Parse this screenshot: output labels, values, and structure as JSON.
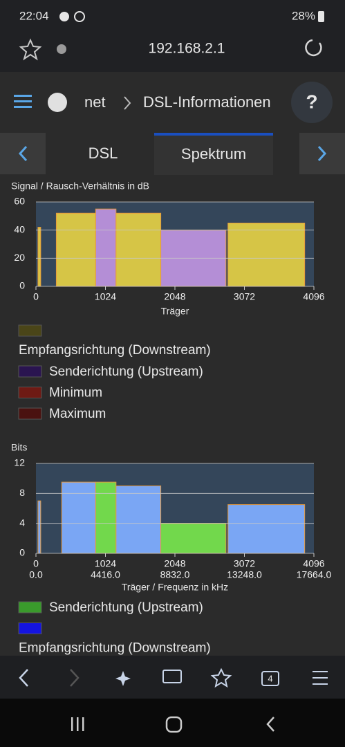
{
  "status_bar": {
    "time": "22:04",
    "battery": "28%"
  },
  "address_bar": {
    "url": "192.168.2.1"
  },
  "breadcrumb": {
    "parent": "net",
    "current": "DSL-Informationen"
  },
  "help": "?",
  "tabs": [
    "DSL",
    "Spektrum"
  ],
  "charts": [
    {
      "type": "bar",
      "title": "Signal / Rausch-Verhältnis in dB",
      "xlabel": "Träger",
      "xlim": [
        0,
        4096
      ],
      "xticks": [
        0,
        1024,
        2048,
        3072,
        4096
      ],
      "ylim": [
        0,
        60
      ],
      "yticks": [
        0,
        20,
        40,
        60
      ],
      "grid": true,
      "series": [
        {
          "name": "Empfangsrichtung (Downstream)",
          "color": "#d6c546",
          "legend_color": "#4a4518"
        },
        {
          "name": "Senderichtung (Upstream)",
          "color": "#b48ed6",
          "legend_color": "#2a1450"
        },
        {
          "name": "Minimum",
          "legend_color": "#6e1a14"
        },
        {
          "name": "Maximum",
          "legend_color": "#4a1210"
        }
      ],
      "segments": [
        {
          "series": 0,
          "x": [
            30,
            70
          ],
          "value": 42
        },
        {
          "series": 0,
          "x": [
            300,
            880
          ],
          "value": 52
        },
        {
          "series": 1,
          "x": [
            880,
            1180
          ],
          "value": 55
        },
        {
          "series": 0,
          "x": [
            1180,
            1840
          ],
          "value": 52
        },
        {
          "series": 1,
          "x": [
            1840,
            2800
          ],
          "value": 40
        },
        {
          "series": 0,
          "x": [
            2830,
            3960
          ],
          "value": 45
        }
      ]
    },
    {
      "type": "bar",
      "title": "Bits",
      "xlabel": "Träger / Frequenz in kHz",
      "xlim": [
        0,
        4096
      ],
      "xticks": [
        0,
        1024,
        2048,
        3072,
        4096
      ],
      "x2lim": [
        0,
        17664
      ],
      "x2ticks": [
        {
          "value": 0,
          "label": "0.0"
        },
        {
          "value": 4416,
          "label": "4416.0"
        },
        {
          "value": 8832,
          "label": "8832.0"
        },
        {
          "value": 13248,
          "label": "13248.0"
        },
        {
          "value": 17664,
          "label": "17664.0"
        }
      ],
      "ylim": [
        0,
        12
      ],
      "yticks": [
        0,
        4,
        8,
        12
      ],
      "grid": true,
      "series": [
        {
          "name": "Senderichtung (Upstream)",
          "color": "#72d84c",
          "legend_color": "#3a9a2c"
        },
        {
          "name": "Empfangsrichtung (Downstream)",
          "color": "#7aa6f4",
          "legend_color": "#1414e0"
        }
      ],
      "segments": [
        {
          "series": 1,
          "x": [
            30,
            70
          ],
          "value": 7
        },
        {
          "series": 1,
          "x": [
            380,
            880
          ],
          "value": 9.5
        },
        {
          "series": 0,
          "x": [
            880,
            1180
          ],
          "value": 9.5
        },
        {
          "series": 1,
          "x": [
            1180,
            1840
          ],
          "value": 9
        },
        {
          "series": 0,
          "x": [
            1840,
            2800
          ],
          "value": 4
        },
        {
          "series": 1,
          "x": [
            2830,
            3960
          ],
          "value": 6.5
        }
      ]
    }
  ],
  "browser_toolbar": {
    "tab_count": "4"
  }
}
